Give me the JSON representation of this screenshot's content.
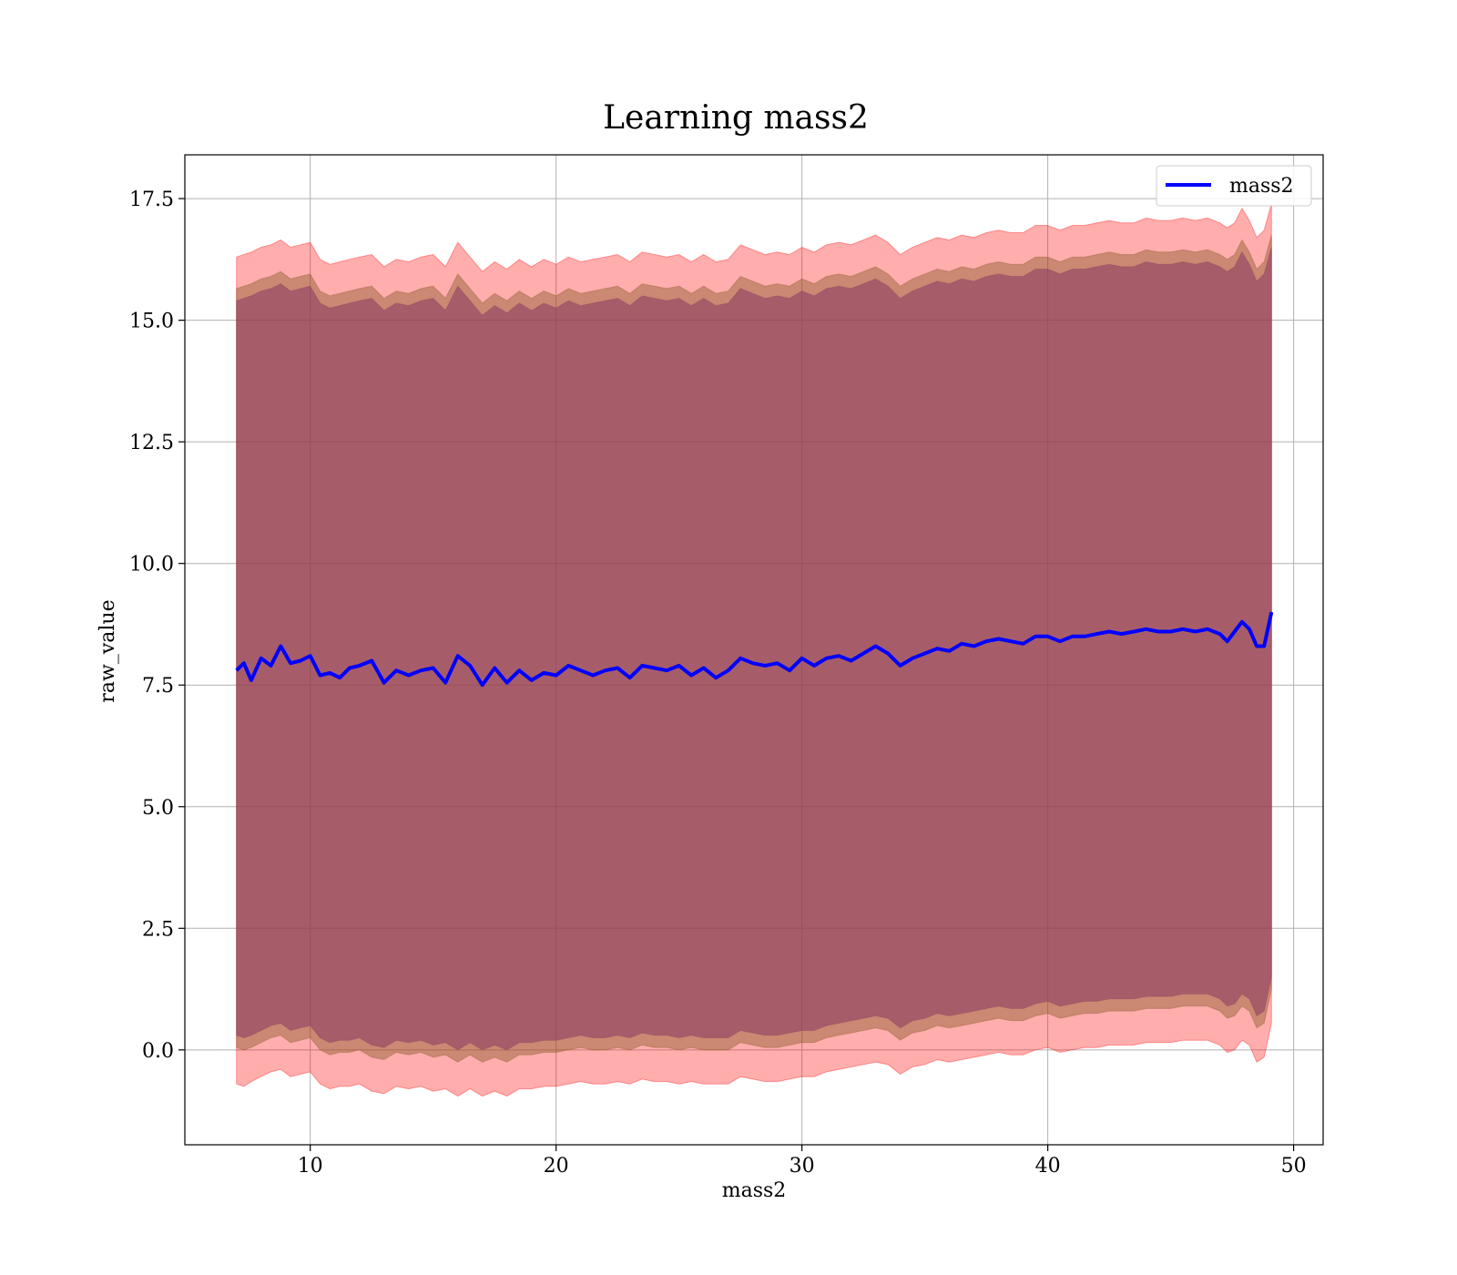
{
  "chart_data": {
    "type": "line",
    "title": "Learning mass2",
    "xlabel": "mass2",
    "ylabel": "raw_value",
    "xlim": [
      4.9,
      51.2
    ],
    "ylim": [
      -1.95,
      18.4
    ],
    "xticks": [
      10,
      20,
      30,
      40,
      50
    ],
    "yticks": [
      0.0,
      2.5,
      5.0,
      7.5,
      10.0,
      12.5,
      15.0,
      17.5
    ],
    "xtick_labels": [
      "10",
      "20",
      "30",
      "40",
      "50"
    ],
    "ytick_labels": [
      "0.0",
      "2.5",
      "5.0",
      "7.5",
      "10.0",
      "12.5",
      "15.0",
      "17.5"
    ],
    "grid": true,
    "legend": {
      "position": "top-right",
      "entries": [
        "mass2"
      ]
    },
    "colors": {
      "line": "#0000ff",
      "outer_band": "#ff0000",
      "middle_band": "#8b5a2b",
      "inner_band": "#8b3a62",
      "grid": "#b0b0b0"
    },
    "series": [
      {
        "name": "mass2",
        "x": [
          7.0,
          7.3,
          7.6,
          8.0,
          8.4,
          8.8,
          9.2,
          9.6,
          10.0,
          10.4,
          10.8,
          11.2,
          11.6,
          12.0,
          12.5,
          13.0,
          13.5,
          14.0,
          14.5,
          15.0,
          15.5,
          16.0,
          16.5,
          17.0,
          17.5,
          18.0,
          18.5,
          19.0,
          19.5,
          20.0,
          20.5,
          21.0,
          21.5,
          22.0,
          22.5,
          23.0,
          23.5,
          24.0,
          24.5,
          25.0,
          25.5,
          26.0,
          26.5,
          27.0,
          27.5,
          28.0,
          28.5,
          29.0,
          29.5,
          30.0,
          30.5,
          31.0,
          31.5,
          32.0,
          32.5,
          33.0,
          33.5,
          34.0,
          34.5,
          35.0,
          35.5,
          36.0,
          36.5,
          37.0,
          37.5,
          38.0,
          38.5,
          39.0,
          39.5,
          40.0,
          40.5,
          41.0,
          41.5,
          42.0,
          42.5,
          43.0,
          43.5,
          44.0,
          44.5,
          45.0,
          45.5,
          46.0,
          46.5,
          47.0,
          47.3,
          47.6,
          47.9,
          48.2,
          48.5,
          48.8,
          49.1
        ],
        "y": [
          7.8,
          7.95,
          7.6,
          8.05,
          7.9,
          8.3,
          7.95,
          8.0,
          8.1,
          7.7,
          7.75,
          7.65,
          7.85,
          7.9,
          8.0,
          7.55,
          7.8,
          7.7,
          7.8,
          7.85,
          7.55,
          8.1,
          7.9,
          7.5,
          7.85,
          7.55,
          7.8,
          7.6,
          7.75,
          7.7,
          7.9,
          7.8,
          7.7,
          7.8,
          7.85,
          7.65,
          7.9,
          7.85,
          7.8,
          7.9,
          7.7,
          7.85,
          7.65,
          7.8,
          8.05,
          7.95,
          7.9,
          7.95,
          7.8,
          8.05,
          7.9,
          8.05,
          8.1,
          8.0,
          8.15,
          8.3,
          8.15,
          7.9,
          8.05,
          8.15,
          8.25,
          8.2,
          8.35,
          8.3,
          8.4,
          8.45,
          8.4,
          8.35,
          8.5,
          8.5,
          8.4,
          8.5,
          8.5,
          8.55,
          8.6,
          8.55,
          8.6,
          8.65,
          8.6,
          8.6,
          8.65,
          8.6,
          8.65,
          8.55,
          8.4,
          8.6,
          8.8,
          8.65,
          8.3,
          8.3,
          9.0
        ]
      }
    ],
    "bands": [
      {
        "role": "outer",
        "lower": [
          -0.7,
          -0.75,
          -0.65,
          -0.55,
          -0.45,
          -0.4,
          -0.55,
          -0.5,
          -0.45,
          -0.7,
          -0.8,
          -0.75,
          -0.75,
          -0.7,
          -0.85,
          -0.9,
          -0.75,
          -0.8,
          -0.75,
          -0.85,
          -0.8,
          -0.95,
          -0.8,
          -0.95,
          -0.85,
          -0.95,
          -0.8,
          -0.8,
          -0.75,
          -0.75,
          -0.7,
          -0.65,
          -0.7,
          -0.7,
          -0.65,
          -0.7,
          -0.6,
          -0.65,
          -0.65,
          -0.7,
          -0.65,
          -0.7,
          -0.7,
          -0.7,
          -0.55,
          -0.6,
          -0.65,
          -0.65,
          -0.6,
          -0.55,
          -0.55,
          -0.45,
          -0.4,
          -0.35,
          -0.3,
          -0.25,
          -0.3,
          -0.5,
          -0.35,
          -0.3,
          -0.2,
          -0.25,
          -0.2,
          -0.15,
          -0.1,
          -0.05,
          -0.1,
          -0.1,
          0.0,
          0.05,
          -0.05,
          0.0,
          0.05,
          0.05,
          0.1,
          0.1,
          0.1,
          0.15,
          0.15,
          0.15,
          0.2,
          0.2,
          0.2,
          0.1,
          -0.05,
          0.0,
          0.2,
          0.1,
          -0.25,
          -0.15,
          0.55
        ],
        "upper": [
          16.3,
          16.35,
          16.4,
          16.5,
          16.55,
          16.65,
          16.5,
          16.55,
          16.6,
          16.25,
          16.15,
          16.2,
          16.25,
          16.3,
          16.35,
          16.1,
          16.25,
          16.2,
          16.3,
          16.35,
          16.1,
          16.6,
          16.3,
          16.0,
          16.2,
          16.05,
          16.25,
          16.1,
          16.25,
          16.15,
          16.3,
          16.2,
          16.25,
          16.3,
          16.35,
          16.2,
          16.4,
          16.35,
          16.3,
          16.35,
          16.2,
          16.35,
          16.2,
          16.25,
          16.55,
          16.45,
          16.35,
          16.4,
          16.35,
          16.5,
          16.4,
          16.55,
          16.6,
          16.55,
          16.65,
          16.75,
          16.6,
          16.35,
          16.5,
          16.6,
          16.7,
          16.65,
          16.75,
          16.7,
          16.8,
          16.85,
          16.8,
          16.8,
          16.95,
          16.95,
          16.85,
          16.95,
          16.95,
          17.0,
          17.05,
          17.0,
          17.0,
          17.1,
          17.05,
          17.05,
          17.1,
          17.05,
          17.1,
          17.0,
          16.9,
          17.0,
          17.3,
          17.05,
          16.7,
          16.85,
          17.4
        ]
      },
      {
        "role": "middle",
        "lower": [
          0.05,
          0.0,
          0.05,
          0.15,
          0.25,
          0.3,
          0.15,
          0.2,
          0.25,
          0.0,
          -0.1,
          -0.05,
          -0.05,
          0.0,
          -0.15,
          -0.2,
          -0.05,
          -0.1,
          -0.05,
          -0.15,
          -0.1,
          -0.25,
          -0.1,
          -0.25,
          -0.15,
          -0.25,
          -0.1,
          -0.1,
          -0.05,
          -0.05,
          0.0,
          0.05,
          0.0,
          0.0,
          0.05,
          0.0,
          0.1,
          0.05,
          0.05,
          0.0,
          0.05,
          0.0,
          0.0,
          0.0,
          0.15,
          0.1,
          0.05,
          0.05,
          0.1,
          0.15,
          0.15,
          0.25,
          0.3,
          0.35,
          0.4,
          0.45,
          0.4,
          0.2,
          0.35,
          0.4,
          0.5,
          0.45,
          0.5,
          0.55,
          0.6,
          0.65,
          0.6,
          0.6,
          0.7,
          0.75,
          0.65,
          0.7,
          0.75,
          0.75,
          0.8,
          0.8,
          0.8,
          0.85,
          0.85,
          0.85,
          0.9,
          0.9,
          0.9,
          0.8,
          0.65,
          0.7,
          0.9,
          0.8,
          0.45,
          0.55,
          1.25
        ],
        "upper": [
          15.65,
          15.7,
          15.75,
          15.85,
          15.9,
          16.0,
          15.85,
          15.9,
          15.95,
          15.6,
          15.5,
          15.55,
          15.6,
          15.65,
          15.7,
          15.45,
          15.6,
          15.55,
          15.65,
          15.7,
          15.45,
          15.95,
          15.65,
          15.35,
          15.55,
          15.4,
          15.6,
          15.45,
          15.6,
          15.5,
          15.65,
          15.55,
          15.6,
          15.65,
          15.7,
          15.55,
          15.75,
          15.7,
          15.65,
          15.7,
          15.55,
          15.7,
          15.55,
          15.6,
          15.9,
          15.8,
          15.7,
          15.75,
          15.7,
          15.85,
          15.75,
          15.9,
          15.95,
          15.9,
          16.0,
          16.1,
          15.95,
          15.7,
          15.85,
          15.95,
          16.05,
          16.0,
          16.1,
          16.05,
          16.15,
          16.2,
          16.15,
          16.15,
          16.3,
          16.3,
          16.2,
          16.3,
          16.3,
          16.35,
          16.4,
          16.35,
          16.35,
          16.45,
          16.4,
          16.4,
          16.45,
          16.4,
          16.45,
          16.35,
          16.25,
          16.35,
          16.65,
          16.4,
          16.05,
          16.2,
          16.75
        ]
      },
      {
        "role": "inner",
        "lower": [
          0.3,
          0.25,
          0.3,
          0.4,
          0.5,
          0.55,
          0.4,
          0.45,
          0.5,
          0.25,
          0.15,
          0.2,
          0.2,
          0.25,
          0.1,
          0.05,
          0.2,
          0.15,
          0.2,
          0.1,
          0.15,
          0.0,
          0.15,
          0.0,
          0.1,
          0.0,
          0.15,
          0.15,
          0.2,
          0.2,
          0.25,
          0.3,
          0.25,
          0.25,
          0.3,
          0.25,
          0.35,
          0.3,
          0.3,
          0.25,
          0.3,
          0.25,
          0.25,
          0.25,
          0.4,
          0.35,
          0.3,
          0.3,
          0.35,
          0.4,
          0.4,
          0.5,
          0.55,
          0.6,
          0.65,
          0.7,
          0.65,
          0.45,
          0.6,
          0.65,
          0.75,
          0.7,
          0.75,
          0.8,
          0.85,
          0.9,
          0.85,
          0.85,
          0.95,
          1.0,
          0.9,
          0.95,
          1.0,
          1.0,
          1.05,
          1.05,
          1.05,
          1.1,
          1.1,
          1.1,
          1.15,
          1.15,
          1.15,
          1.05,
          0.9,
          0.95,
          1.15,
          1.05,
          0.7,
          0.8,
          1.5
        ],
        "upper": [
          15.4,
          15.45,
          15.5,
          15.6,
          15.65,
          15.75,
          15.6,
          15.65,
          15.7,
          15.35,
          15.25,
          15.3,
          15.35,
          15.4,
          15.45,
          15.2,
          15.35,
          15.3,
          15.4,
          15.45,
          15.2,
          15.7,
          15.4,
          15.1,
          15.3,
          15.15,
          15.35,
          15.2,
          15.35,
          15.25,
          15.4,
          15.3,
          15.35,
          15.4,
          15.45,
          15.3,
          15.5,
          15.45,
          15.4,
          15.45,
          15.3,
          15.45,
          15.3,
          15.35,
          15.65,
          15.55,
          15.45,
          15.5,
          15.45,
          15.6,
          15.5,
          15.65,
          15.7,
          15.65,
          15.75,
          15.85,
          15.7,
          15.45,
          15.6,
          15.7,
          15.8,
          15.75,
          15.85,
          15.8,
          15.9,
          15.95,
          15.9,
          15.9,
          16.05,
          16.05,
          15.95,
          16.05,
          16.05,
          16.1,
          16.15,
          16.1,
          16.1,
          16.2,
          16.15,
          16.15,
          16.2,
          16.15,
          16.2,
          16.1,
          16.0,
          16.1,
          16.4,
          16.15,
          15.8,
          15.95,
          16.5
        ]
      }
    ]
  }
}
